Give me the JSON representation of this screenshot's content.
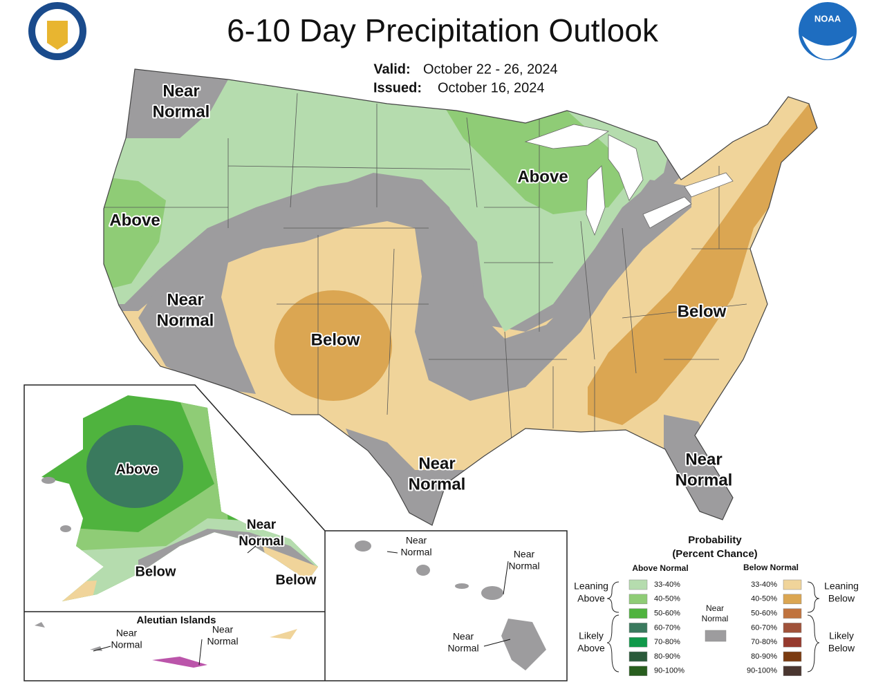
{
  "header": {
    "title": "6-10 Day Precipitation Outlook",
    "valid_label": "Valid:",
    "valid": "October 22 - 26, 2024",
    "issued_label": "Issued:",
    "issued": "October 16, 2024"
  },
  "map_labels": [
    {
      "lines": [
        "Near",
        "Normal"
      ]
    },
    {
      "lines": [
        "Above"
      ]
    },
    {
      "lines": [
        "Above"
      ]
    },
    {
      "lines": [
        "Near",
        "Normal"
      ]
    },
    {
      "lines": [
        "Below"
      ]
    },
    {
      "lines": [
        "Below"
      ]
    },
    {
      "lines": [
        "Near",
        "Normal"
      ]
    },
    {
      "lines": [
        "Near",
        "Normal"
      ]
    }
  ],
  "alaska_labels": [
    {
      "lines": [
        "Above"
      ]
    },
    {
      "lines": [
        "Near",
        "Normal"
      ]
    },
    {
      "lines": [
        "Below"
      ]
    },
    {
      "lines": [
        "Below"
      ]
    }
  ],
  "aleutian": {
    "title": "Aleutian Islands",
    "labels": [
      {
        "lines": [
          "Near",
          "Normal"
        ]
      },
      {
        "lines": [
          "Near",
          "Normal"
        ]
      }
    ]
  },
  "hawaii_labels": [
    {
      "lines": [
        "Near",
        "Normal"
      ]
    },
    {
      "lines": [
        "Near",
        "Normal"
      ]
    },
    {
      "lines": [
        "Near",
        "Normal"
      ]
    }
  ],
  "legend": {
    "title": "Probability",
    "subtitle": "(Percent Chance)",
    "above_header": "Above Normal",
    "below_header": "Below Normal",
    "above": [
      {
        "range": "33-40%",
        "color": "#b5dcae"
      },
      {
        "range": "40-50%",
        "color": "#8fcc76"
      },
      {
        "range": "50-60%",
        "color": "#4fb33e"
      },
      {
        "range": "60-70%",
        "color": "#3a7a5e"
      },
      {
        "range": "70-80%",
        "color": "#10994a"
      },
      {
        "range": "80-90%",
        "color": "#2a5a3a"
      },
      {
        "range": "90-100%",
        "color": "#285e1e"
      }
    ],
    "below": [
      {
        "range": "33-40%",
        "color": "#f0d49a"
      },
      {
        "range": "40-50%",
        "color": "#dba652"
      },
      {
        "range": "50-60%",
        "color": "#c0733e"
      },
      {
        "range": "60-70%",
        "color": "#a0523a"
      },
      {
        "range": "70-80%",
        "color": "#963a2e"
      },
      {
        "range": "80-90%",
        "color": "#7a3a10"
      },
      {
        "range": "90-100%",
        "color": "#4a3630"
      }
    ],
    "near_normal": {
      "lines": [
        "Near",
        "Normal"
      ],
      "color": "#9d9c9e"
    },
    "groups": {
      "leaning_above": [
        "Leaning",
        "Above"
      ],
      "likely_above": [
        "Likely",
        "Above"
      ],
      "leaning_below": [
        "Leaning",
        "Below"
      ],
      "likely_below": [
        "Likely",
        "Below"
      ]
    }
  }
}
